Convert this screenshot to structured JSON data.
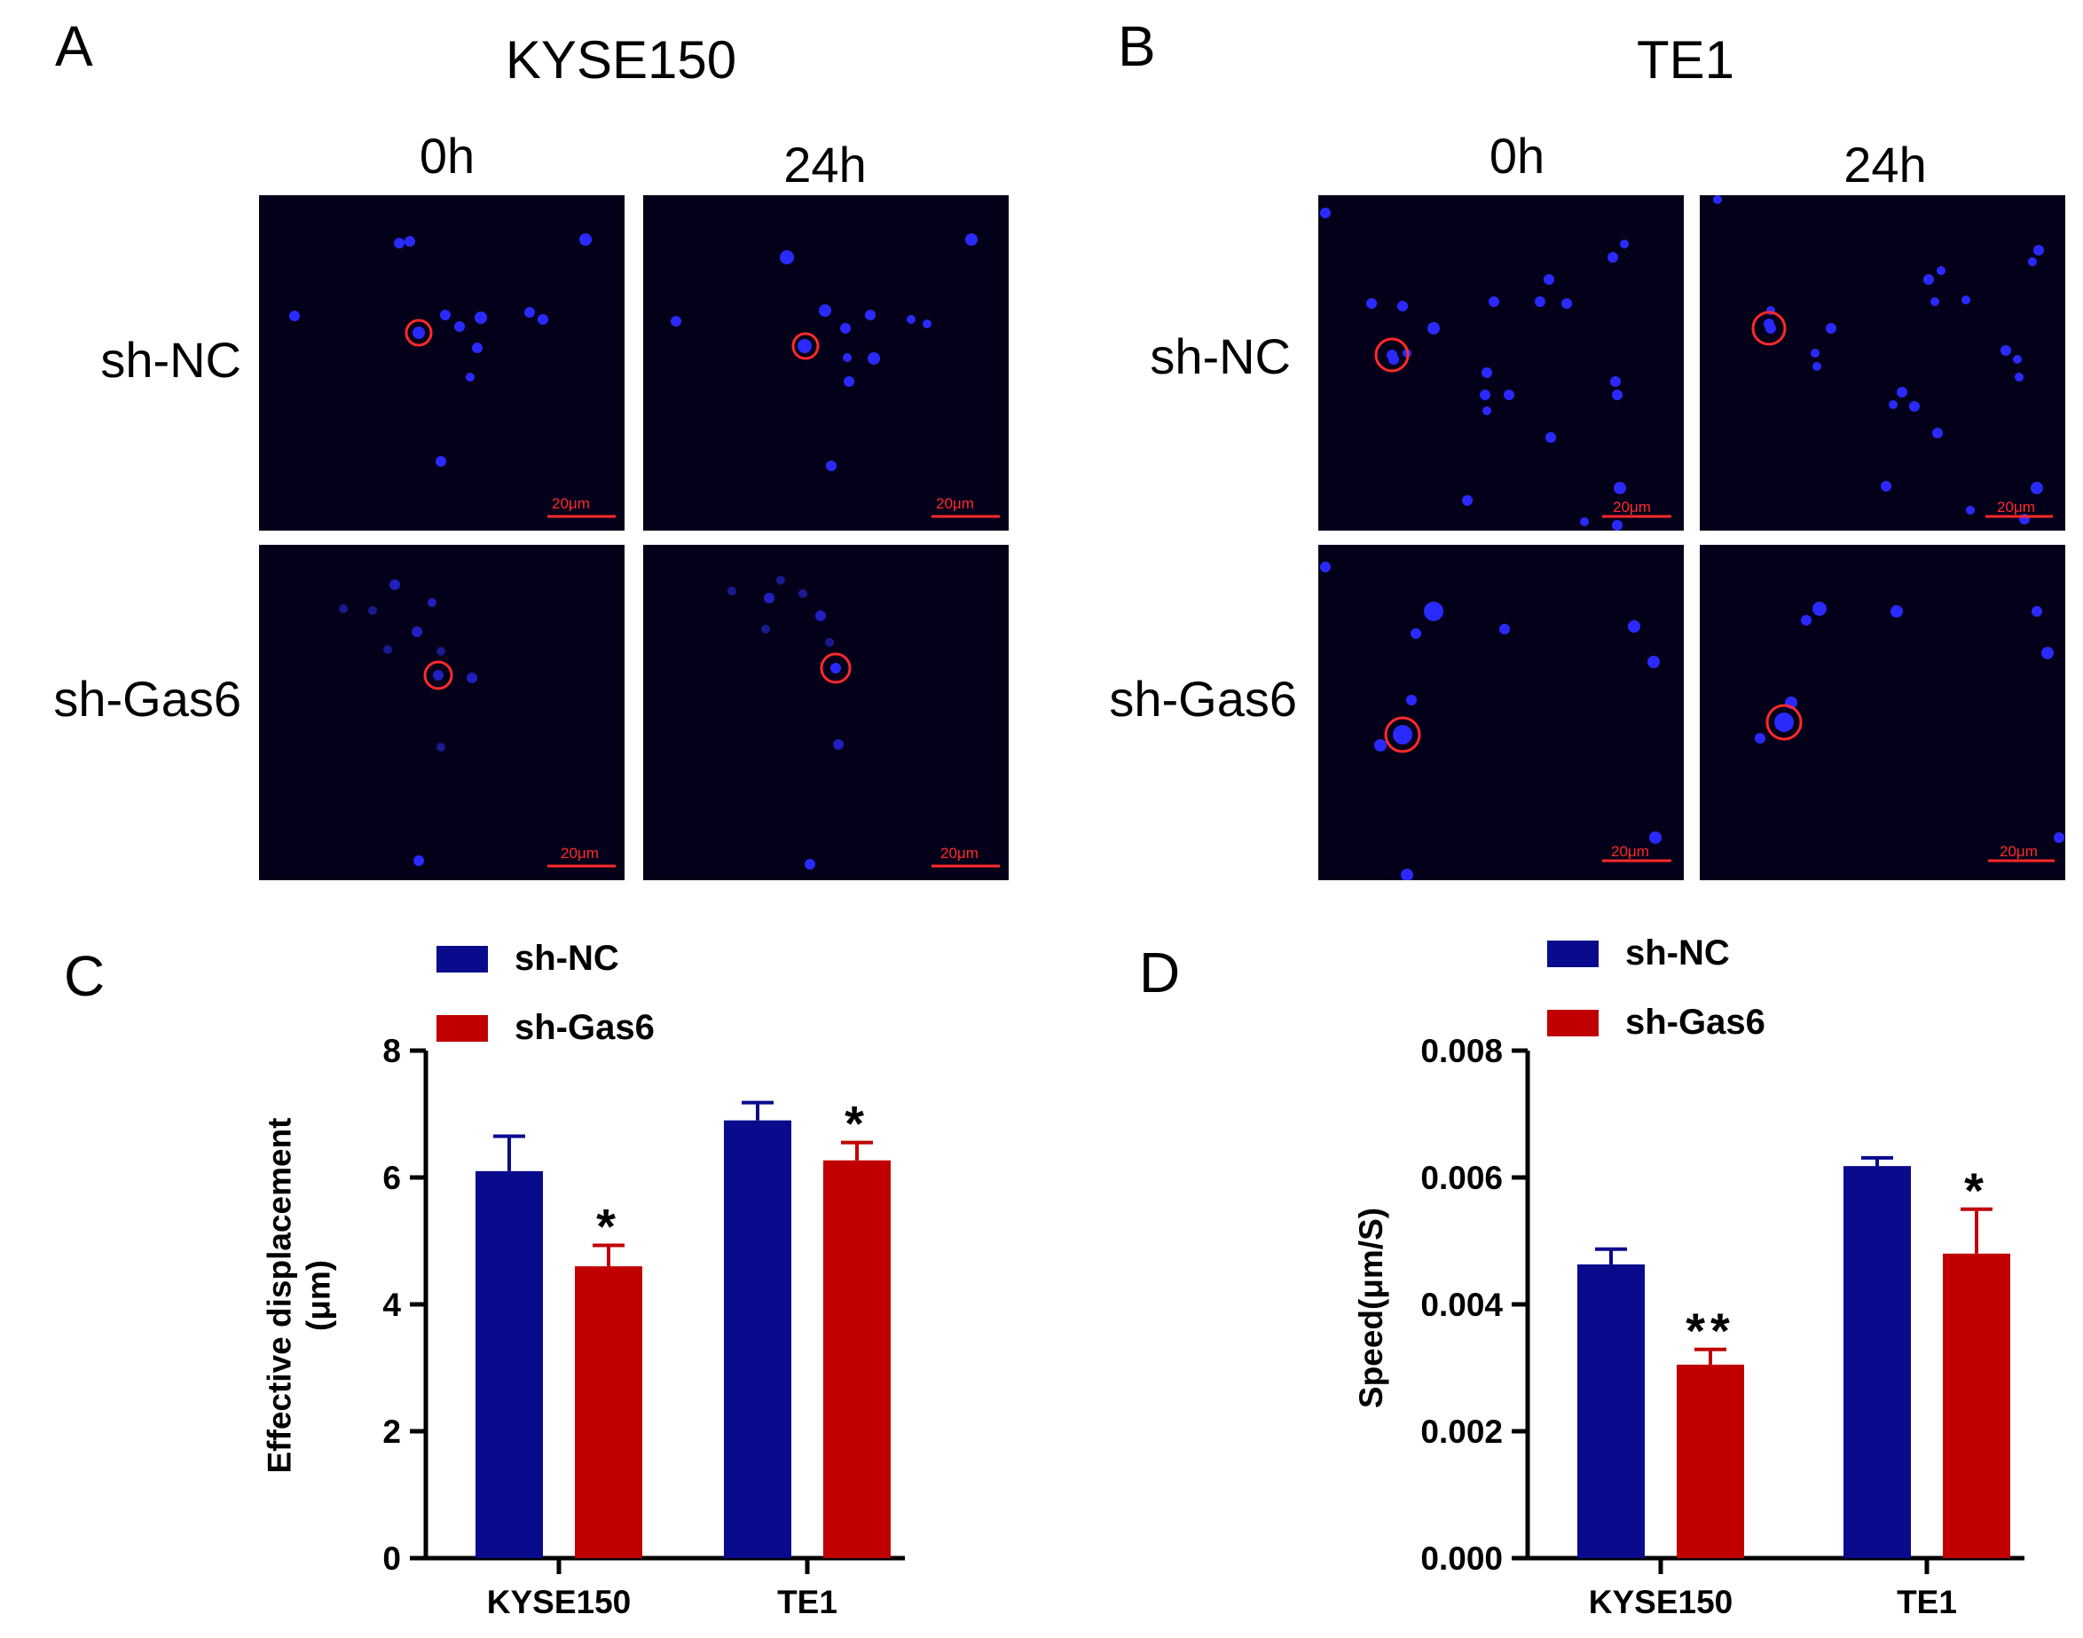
{
  "panels": {
    "A": {
      "letter": "A",
      "cell_line": "KYSE150",
      "times": [
        "0h",
        "24h"
      ],
      "groups": [
        "sh-NC",
        "sh-Gas6"
      ],
      "scale_bar": "20μm"
    },
    "B": {
      "letter": "B",
      "cell_line": "TE1",
      "times": [
        "0h",
        "24h"
      ],
      "groups": [
        "sh-NC",
        "sh-Gas6"
      ],
      "scale_bar": "20μm"
    },
    "C": {
      "letter": "C"
    },
    "D": {
      "letter": "D"
    }
  },
  "colors": {
    "sh_nc": "#0a0a8c",
    "sh_gas6": "#c00000",
    "micro_bg": "#04001a",
    "nucleus": "#2a2aff",
    "circle": "#ff2a2a"
  },
  "chart_data": [
    {
      "type": "bar",
      "panel": "C",
      "categories": [
        "KYSE150",
        "TE1"
      ],
      "series": [
        {
          "name": "sh-NC",
          "values": [
            6.1,
            6.9
          ],
          "errors": [
            0.55,
            0.28
          ]
        },
        {
          "name": "sh-Gas6",
          "values": [
            4.6,
            6.27
          ],
          "errors": [
            0.33,
            0.28
          ]
        }
      ],
      "significance": [
        [
          "",
          ""
        ],
        [
          "*",
          "*"
        ]
      ],
      "ylabel_line1": "Effective displacement",
      "ylabel_line2": "(μm)",
      "ylim": [
        0,
        8
      ],
      "yticks": [
        0,
        2,
        4,
        6,
        8
      ],
      "ytick_labels": [
        "0",
        "2",
        "4",
        "6",
        "8"
      ],
      "legend": [
        "sh-NC",
        "sh-Gas6"
      ]
    },
    {
      "type": "bar",
      "panel": "D",
      "categories": [
        "KYSE150",
        "TE1"
      ],
      "series": [
        {
          "name": "sh-NC",
          "values": [
            0.00463,
            0.00618
          ],
          "errors": [
            0.00024,
            0.00013
          ]
        },
        {
          "name": "sh-Gas6",
          "values": [
            0.00305,
            0.0048
          ],
          "errors": [
            0.00024,
            0.0007
          ]
        }
      ],
      "significance": [
        [
          "",
          ""
        ],
        [
          "**",
          "*"
        ]
      ],
      "ylabel_line1": "Speed(μm/S)",
      "ylabel_line2": "",
      "ylim": [
        0,
        0.008
      ],
      "yticks": [
        0,
        0.002,
        0.004,
        0.006,
        0.008
      ],
      "ytick_labels": [
        "0.000",
        "0.002",
        "0.004",
        "0.006",
        "0.008"
      ],
      "legend": [
        "sh-NC",
        "sh-Gas6"
      ]
    }
  ]
}
